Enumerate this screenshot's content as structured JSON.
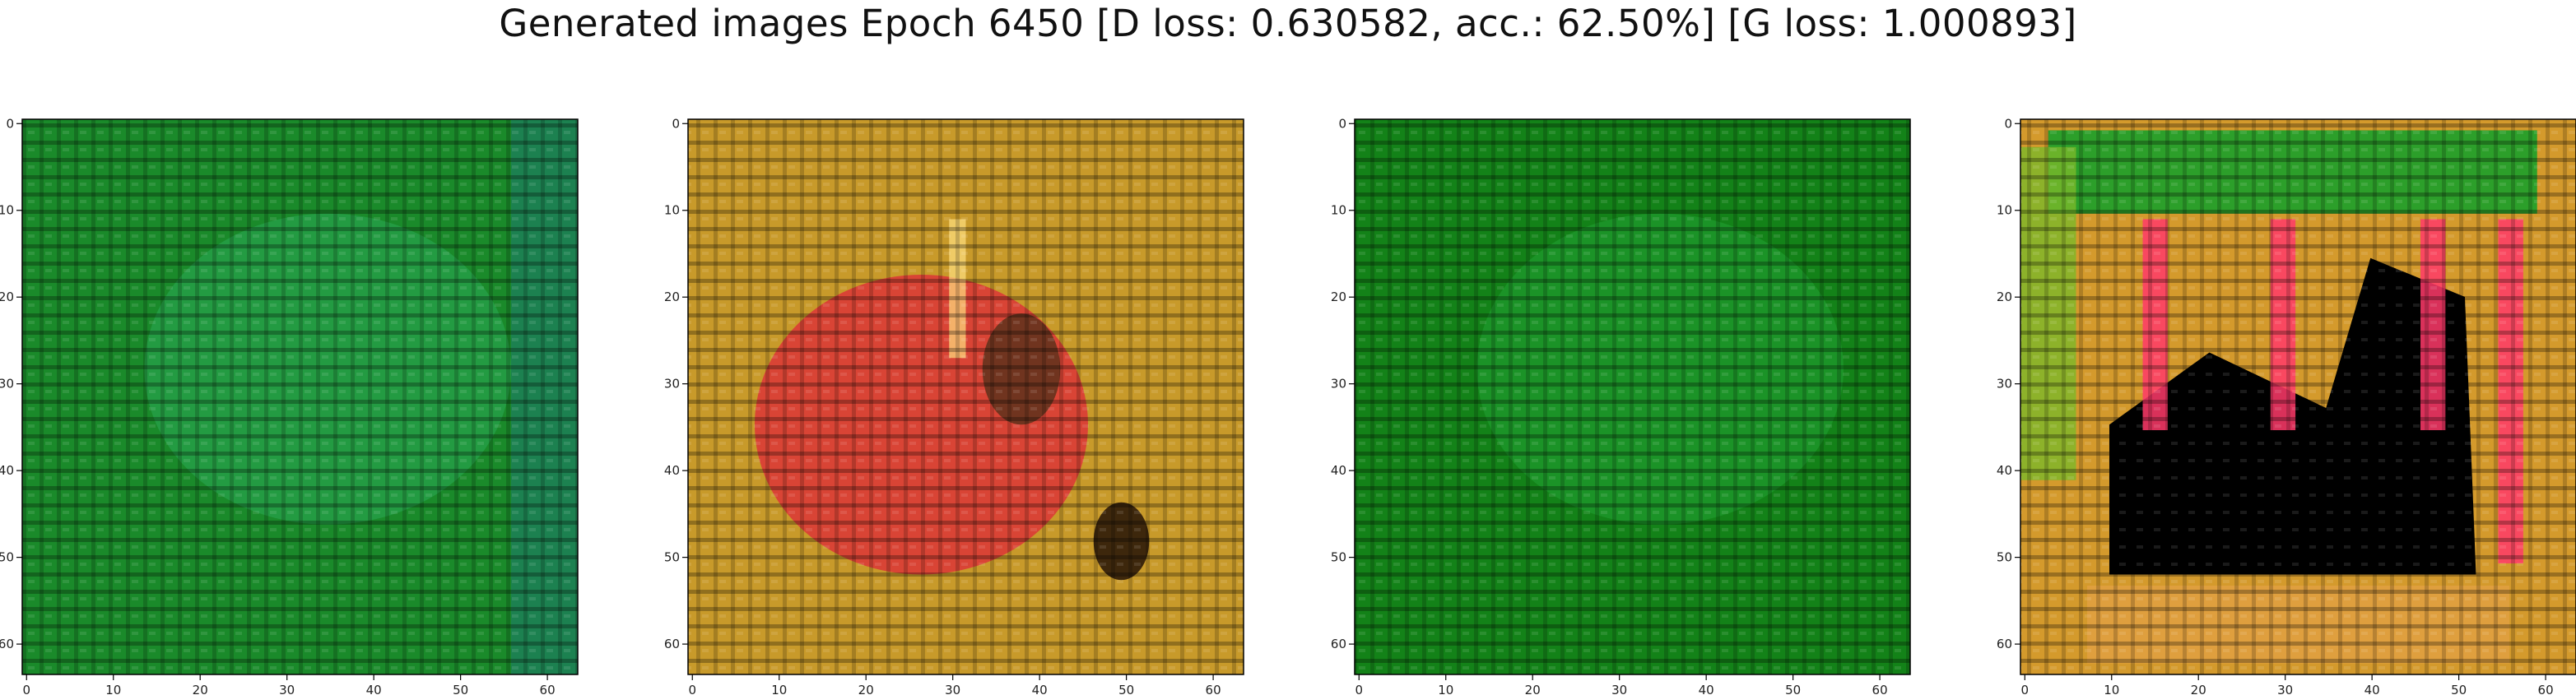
{
  "figure": {
    "title": "Generated images Epoch 6450 [D loss: 0.630582, acc.: 62.50%] [G loss: 1.000893]"
  },
  "chart_data": [
    {
      "type": "heatmap",
      "name": "generated-image-1",
      "dominant_color": "#1a8a2a",
      "accent_color": "#2fb060",
      "xlim": [
        -0.5,
        63.5
      ],
      "ylim": [
        63.5,
        -0.5
      ],
      "xticks": [
        0,
        10,
        20,
        30,
        40,
        50,
        60
      ],
      "yticks": [
        0,
        10,
        20,
        30,
        40,
        50,
        60
      ],
      "grid": false
    },
    {
      "type": "heatmap",
      "name": "generated-image-2",
      "dominant_color": "#c89a2a",
      "accent_color": "#e0203a",
      "xlim": [
        -0.5,
        63.5
      ],
      "ylim": [
        63.5,
        -0.5
      ],
      "xticks": [
        0,
        10,
        20,
        30,
        40,
        50,
        60
      ],
      "yticks": [
        0,
        10,
        20,
        30,
        40,
        50,
        60
      ],
      "grid": false
    },
    {
      "type": "heatmap",
      "name": "generated-image-3",
      "dominant_color": "#138218",
      "accent_color": "#25a83a",
      "xlim": [
        -0.5,
        63.5
      ],
      "ylim": [
        63.5,
        -0.5
      ],
      "xticks": [
        0,
        10,
        20,
        30,
        40,
        50,
        60
      ],
      "yticks": [
        0,
        10,
        20,
        30,
        40,
        50,
        60
      ],
      "grid": false
    },
    {
      "type": "heatmap",
      "name": "generated-image-4",
      "dominant_color": "#d49a2c",
      "accent_color": "#ff3a6a",
      "inner_dark_color": "#000000",
      "top_band_color": "#1aa02a",
      "xlim": [
        -0.5,
        63.5
      ],
      "ylim": [
        63.5,
        -0.5
      ],
      "xticks": [
        0,
        10,
        20,
        30,
        40,
        50,
        60
      ],
      "yticks": [
        0,
        10,
        20,
        30,
        40,
        50,
        60
      ],
      "grid": false
    }
  ]
}
